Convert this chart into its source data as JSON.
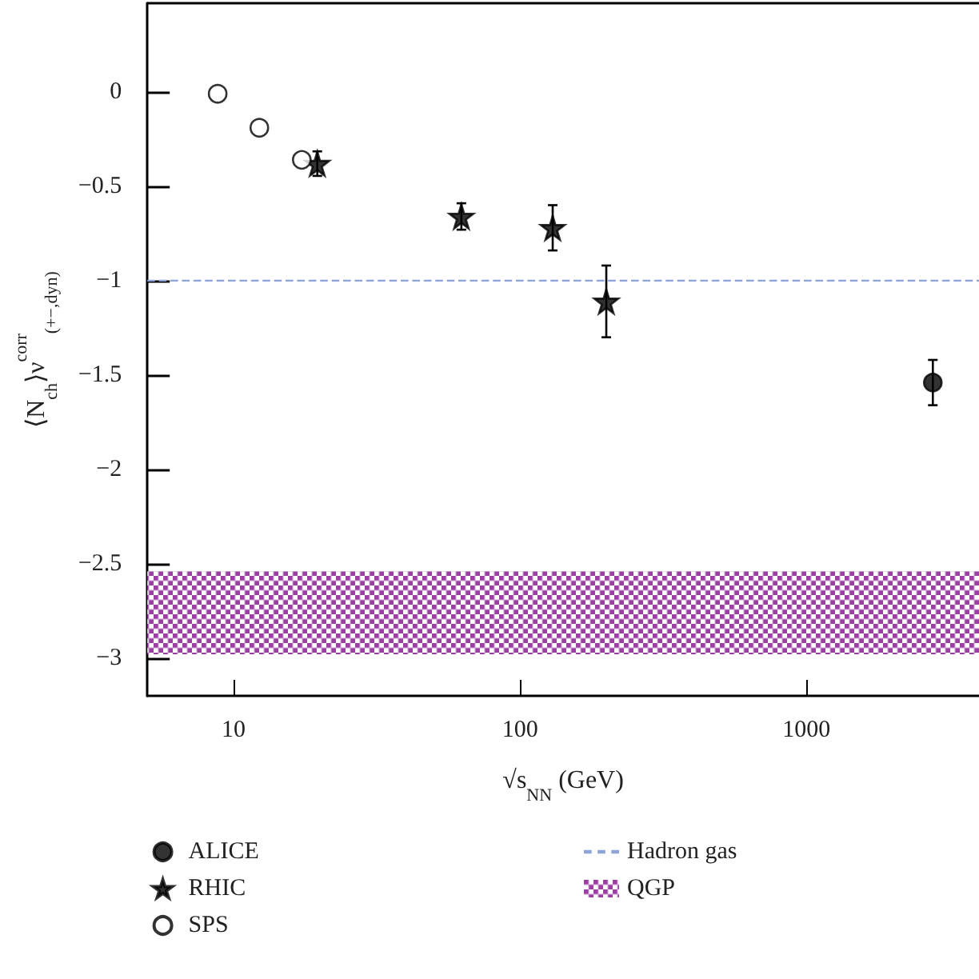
{
  "chart_data": {
    "type": "scatter",
    "xlabel": "√s$_{NN}$ (GeV)",
    "ylabel": "⟨N$_{ch}$⟩ν$^{corr}$$_{(+−,dyn)}$",
    "series": [
      {
        "name": "ALICE",
        "color": "#000000",
        "marker": "circle",
        "x": [
          2760
        ],
        "values": [
          -1.54
        ],
        "errors": [
          0.12
        ]
      },
      {
        "name": "RHIC",
        "color": "#000000",
        "marker": "star",
        "x": [
          19.6,
          62.4,
          130,
          200
        ],
        "values": [
          -0.38,
          -0.66,
          -0.72,
          -1.11
        ],
        "errors": [
          0.065,
          0.07,
          0.12,
          0.19
        ]
      },
      {
        "name": "SPS",
        "color": "#ffffff",
        "marker": "circle",
        "x": [
          8.8,
          12.3,
          17.3
        ],
        "values": [
          -0.01,
          -0.19,
          -0.36
        ]
      }
    ],
    "ref_lines": [
      {
        "axis": "y",
        "value": -1,
        "label": "Hadron gas",
        "color": "#8ea4d8",
        "line_style": "dashed"
      }
    ],
    "bands": [
      {
        "axis": "y",
        "from": -2.98,
        "to": -2.54,
        "label": "QGP",
        "color": "#9b3fa3"
      }
    ],
    "log": "x",
    "xlim": [
      5,
      4000
    ],
    "xticks": [
      10,
      100,
      1000
    ],
    "ylim": [
      -3.2,
      0.47
    ],
    "yticks": [
      {
        "value": -3,
        "label": "−3"
      },
      {
        "value": -2.5,
        "label": "−2.5"
      },
      {
        "value": -2,
        "label": "−2"
      },
      {
        "value": -1.5,
        "label": "−1.5"
      },
      {
        "value": -1,
        "label": "−1"
      },
      {
        "value": -0.5,
        "label": "−0.5"
      },
      0
    ],
    "grid": false,
    "legend": "bottom"
  }
}
